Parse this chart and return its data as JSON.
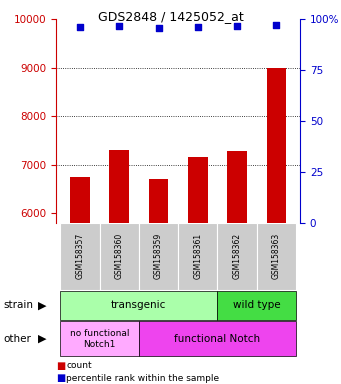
{
  "title": "GDS2848 / 1425052_at",
  "samples": [
    "GSM158357",
    "GSM158360",
    "GSM158359",
    "GSM158361",
    "GSM158362",
    "GSM158363"
  ],
  "counts": [
    6750,
    7300,
    6700,
    7150,
    7280,
    9000
  ],
  "percentiles": [
    96,
    96.5,
    95.5,
    96,
    96.5,
    97
  ],
  "ylim_left": [
    5800,
    10000
  ],
  "ylim_right": [
    0,
    100
  ],
  "yticks_left": [
    6000,
    7000,
    8000,
    9000,
    10000
  ],
  "yticks_right": [
    0,
    25,
    50,
    75,
    100
  ],
  "bar_color": "#cc0000",
  "dot_color": "#0000cc",
  "bar_width": 0.5,
  "left_axis_color": "#cc0000",
  "right_axis_color": "#0000cc",
  "legend_count_label": "count",
  "legend_percentile_label": "percentile rank within the sample",
  "strain_transgenic_color": "#aaffaa",
  "strain_wildtype_color": "#44dd44",
  "other_nofunc_color": "#ffaaff",
  "other_func_color": "#ee44ee",
  "label_bg_color": "#cccccc"
}
